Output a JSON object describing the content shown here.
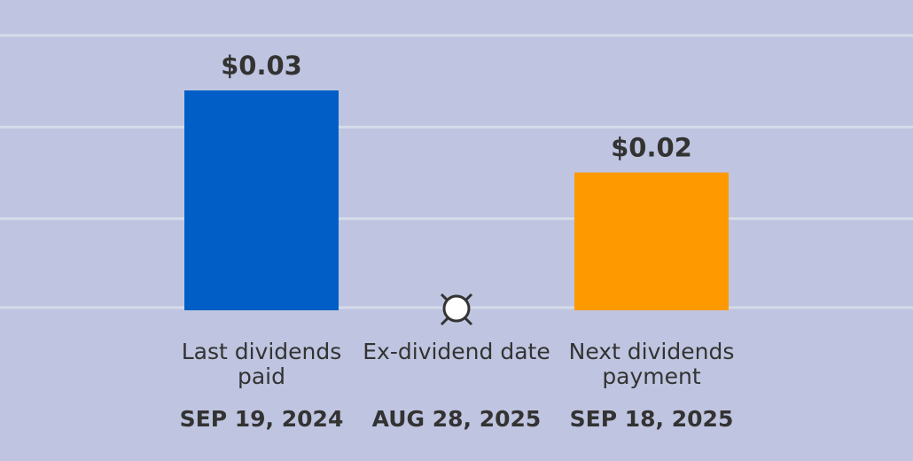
{
  "chart_data": {
    "type": "bar",
    "categories": [
      "Last dividends paid",
      "Ex-dividend date",
      "Next dividends payment"
    ],
    "dates": [
      "SEP 19, 2024",
      "AUG 28, 2025",
      "SEP 18, 2025"
    ],
    "values": [
      0.03,
      null,
      0.0188
    ],
    "value_labels": [
      "$0.03",
      null,
      "$0.02"
    ],
    "colors": [
      "#005ec6",
      null,
      "#ff9900"
    ],
    "ylim": [
      0,
      0.0375
    ],
    "yticks": [
      0,
      0.0125,
      0.025,
      0.0375
    ],
    "grid": true
  }
}
